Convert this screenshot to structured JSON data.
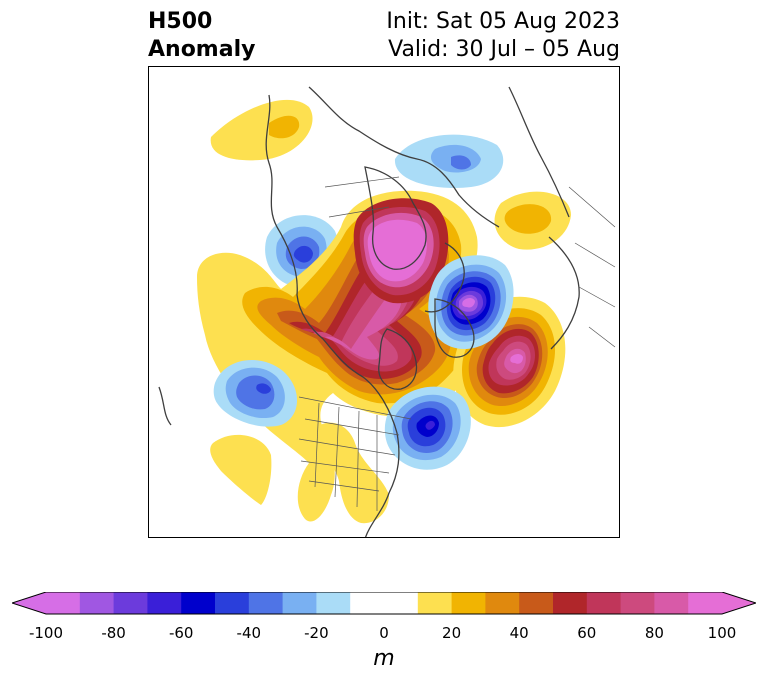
{
  "header": {
    "title_line1": "H500",
    "title_line2": "Anomaly",
    "init_text": "Init: Sat 05 Aug 2023",
    "valid_text": "Valid: 30 Jul – 05 Aug"
  },
  "map": {
    "variable": "500 hPa geopotential height anomaly",
    "region": "Northern Hemisphere polar stereographic",
    "features": [
      {
        "name": "north-pacific-ridge",
        "sign": "positive",
        "peak": 30
      },
      {
        "name": "alaska-yukon-ridge",
        "sign": "positive",
        "peak": 90
      },
      {
        "name": "arctic-ridge",
        "sign": "positive",
        "peak": 100
      },
      {
        "name": "north-atlantic-ridge",
        "sign": "positive",
        "peak": 100
      },
      {
        "name": "greenland-trough",
        "sign": "negative",
        "peak": -100
      },
      {
        "name": "eastern-canada-trough",
        "sign": "negative",
        "peak": -70
      },
      {
        "name": "siberia-trough",
        "sign": "negative",
        "peak": -50
      },
      {
        "name": "gulf-of-alaska-trough",
        "sign": "negative",
        "peak": -70
      },
      {
        "name": "pacific-trough",
        "sign": "negative",
        "peak": -50
      },
      {
        "name": "europe-ridge",
        "sign": "positive",
        "peak": 30
      },
      {
        "name": "southwest-us-ridge",
        "sign": "positive",
        "peak": 20
      }
    ]
  },
  "colorbar": {
    "unit": "m",
    "min": -100,
    "max": 100,
    "step": 10,
    "extend": "both",
    "tick_values": [
      -100,
      -80,
      -60,
      -40,
      -20,
      0,
      20,
      40,
      60,
      80,
      100
    ],
    "tick_labels": [
      "-100",
      "-80",
      "-60",
      "-40",
      "-20",
      "0",
      "20",
      "40",
      "60",
      "80",
      "100"
    ],
    "colors": [
      "#d66ee6",
      "#a057e2",
      "#6c3bdc",
      "#3a1fd8",
      "#0000cc",
      "#2a3fdb",
      "#4f74e6",
      "#79b0f2",
      "#aadcf7",
      "#ffffff",
      "#ffffff",
      "#fde050",
      "#f1b402",
      "#e0890e",
      "#c85a1a",
      "#b0262a",
      "#c0365a",
      "#cd4a7e",
      "#d85aa8",
      "#e56ed6"
    ],
    "under_color": "#d66ee6",
    "over_color": "#e56ed6"
  }
}
